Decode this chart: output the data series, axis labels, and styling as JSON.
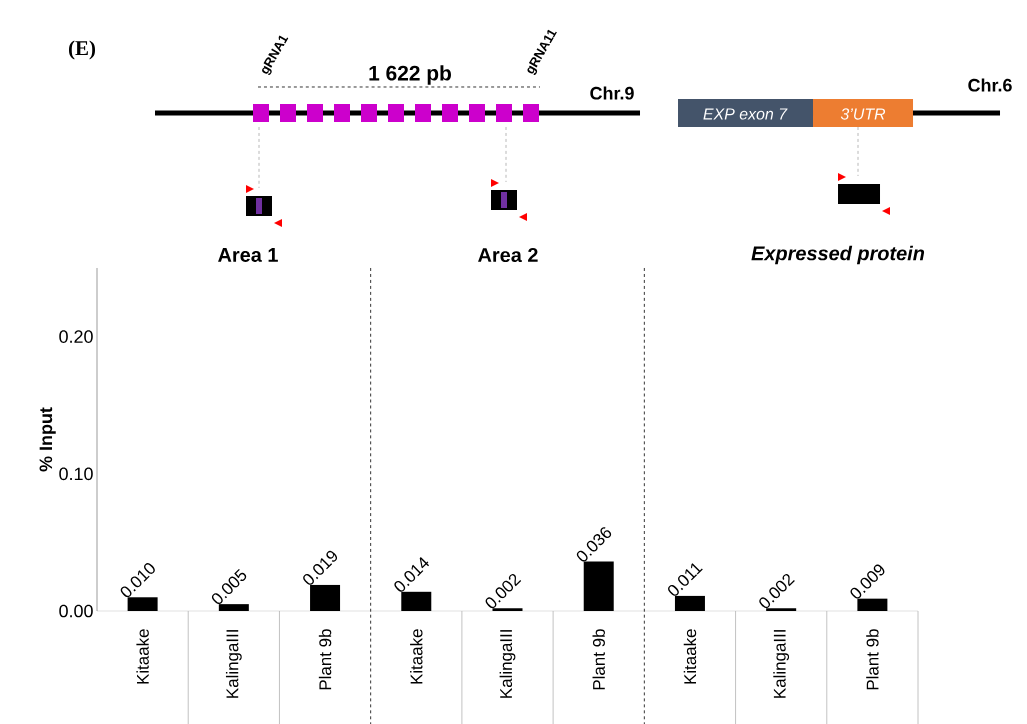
{
  "chart_data": {
    "type": "bar",
    "ylabel": "% Input",
    "categories": [
      "Kitaake",
      "KalingaIII",
      "Plant 9b",
      "Kitaake",
      "KalingaIII",
      "Plant 9b",
      "Kitaake",
      "KalingaIII",
      "Plant 9b"
    ],
    "values": [
      0.01,
      0.005,
      0.019,
      0.014,
      0.002,
      0.036,
      0.011,
      0.002,
      0.009
    ],
    "value_labels": [
      "0.010",
      "0.005",
      "0.019",
      "0.014",
      "0.002",
      "0.036",
      "0.011",
      "0.002",
      "0.009"
    ],
    "color": "#000000",
    "ylim": [
      0,
      0.25
    ],
    "yticks": [
      {
        "value": 0,
        "label": "0.00"
      },
      {
        "value": 0.1,
        "label": "0.10"
      },
      {
        "value": 0.2,
        "label": "0.20"
      }
    ],
    "grid": false,
    "annotations": [
      "(E)",
      "gRNA1",
      "1 622 pb",
      "gRNA11",
      "Chr.9",
      "EXP exon 7",
      "3’UTR",
      "Chr.6",
      "Area 1",
      "Area 2",
      "Expressed protein"
    ]
  }
}
